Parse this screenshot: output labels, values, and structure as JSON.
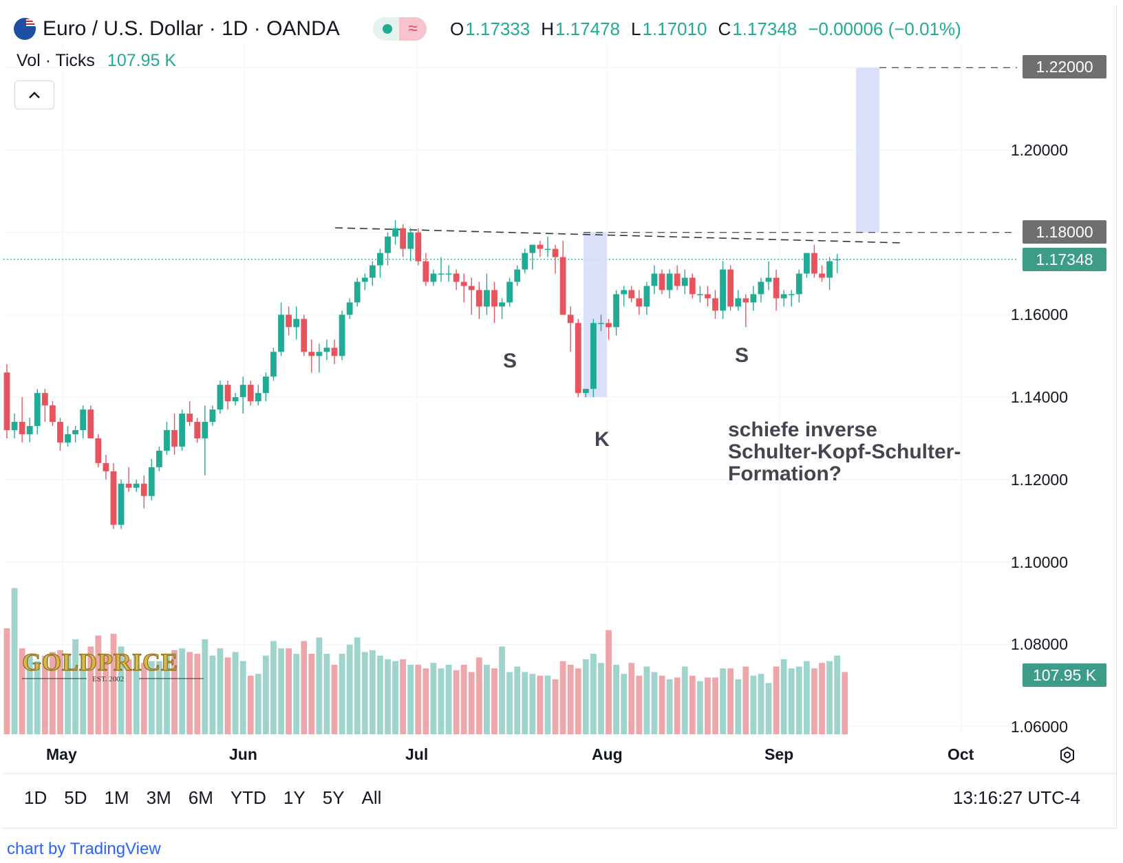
{
  "header": {
    "title": "Euro / U.S. Dollar · 1D · OANDA",
    "ohlc": [
      {
        "key": "O",
        "value": "1.17333"
      },
      {
        "key": "H",
        "value": "1.17478"
      },
      {
        "key": "L",
        "value": "1.17010"
      },
      {
        "key": "C",
        "value": "1.17348"
      }
    ],
    "change": "−0.00006 (−0.01%)"
  },
  "volume": {
    "label": "Vol · Ticks",
    "value": "107.95 K"
  },
  "price_axis": [
    "1.20000",
    "1.16000",
    "1.14000",
    "1.12000",
    "1.10000",
    "1.08000",
    "1.06000"
  ],
  "price_tags": {
    "target": "1.22000",
    "neckline": "1.18000",
    "last": "1.17348",
    "volume": "107.95 K"
  },
  "time_axis": [
    "May",
    "Jun",
    "Jul",
    "Aug",
    "Sep",
    "Oct"
  ],
  "annotations": {
    "left_shoulder": "S",
    "head": "K",
    "right_shoulder": "S",
    "note": [
      "schiefe inverse",
      "Schulter-Kopf-Schulter-",
      "Formation?"
    ]
  },
  "watermark": {
    "brand": "GOLDPRICE",
    "est": "EST. 2002"
  },
  "range_buttons": [
    "1D",
    "5D",
    "1M",
    "3M",
    "6M",
    "YTD",
    "1Y",
    "5Y",
    "All"
  ],
  "clock": "13:16:27 UTC-4",
  "credit": "chart by TradingView",
  "colors": {
    "up": "#22ab94",
    "down": "#e8545e",
    "vol_up": "#9fd4cc",
    "vol_down": "#eda7aa",
    "highlight": "#d7defa",
    "last_tag": "#3d9c88",
    "gray_tag": "#6f6f6f"
  },
  "chart_data": {
    "type": "candlestick",
    "symbol": "EURUSD",
    "interval": "1D",
    "ylim": [
      1.055,
      1.235
    ],
    "neckline": 1.18,
    "target": 1.22,
    "last": 1.17348,
    "candles": [
      [
        1.146,
        1.148,
        1.13,
        1.132
      ],
      [
        1.132,
        1.136,
        1.13,
        1.134
      ],
      [
        1.134,
        1.14,
        1.129,
        1.131
      ],
      [
        1.131,
        1.135,
        1.129,
        1.133
      ],
      [
        1.133,
        1.142,
        1.131,
        1.141
      ],
      [
        1.141,
        1.142,
        1.134,
        1.138
      ],
      [
        1.138,
        1.139,
        1.133,
        1.134
      ],
      [
        1.134,
        1.135,
        1.127,
        1.129
      ],
      [
        1.129,
        1.133,
        1.128,
        1.131
      ],
      [
        1.131,
        1.133,
        1.129,
        1.132
      ],
      [
        1.132,
        1.138,
        1.13,
        1.137
      ],
      [
        1.137,
        1.138,
        1.13,
        1.13
      ],
      [
        1.13,
        1.131,
        1.123,
        1.124
      ],
      [
        1.124,
        1.126,
        1.12,
        1.122
      ],
      [
        1.122,
        1.124,
        1.108,
        1.109
      ],
      [
        1.109,
        1.12,
        1.108,
        1.119
      ],
      [
        1.119,
        1.123,
        1.117,
        1.118
      ],
      [
        1.118,
        1.12,
        1.117,
        1.119
      ],
      [
        1.119,
        1.121,
        1.113,
        1.116
      ],
      [
        1.116,
        1.125,
        1.115,
        1.123
      ],
      [
        1.123,
        1.128,
        1.122,
        1.127
      ],
      [
        1.127,
        1.134,
        1.126,
        1.132
      ],
      [
        1.132,
        1.136,
        1.126,
        1.128
      ],
      [
        1.128,
        1.137,
        1.127,
        1.136
      ],
      [
        1.136,
        1.139,
        1.133,
        1.134
      ],
      [
        1.134,
        1.135,
        1.129,
        1.13
      ],
      [
        1.13,
        1.138,
        1.121,
        1.134
      ],
      [
        1.134,
        1.138,
        1.133,
        1.137
      ],
      [
        1.137,
        1.144,
        1.136,
        1.143
      ],
      [
        1.143,
        1.144,
        1.137,
        1.139
      ],
      [
        1.139,
        1.141,
        1.138,
        1.14
      ],
      [
        1.14,
        1.145,
        1.136,
        1.143
      ],
      [
        1.143,
        1.144,
        1.138,
        1.139
      ],
      [
        1.139,
        1.143,
        1.138,
        1.141
      ],
      [
        1.141,
        1.146,
        1.139,
        1.145
      ],
      [
        1.145,
        1.152,
        1.144,
        1.151
      ],
      [
        1.151,
        1.163,
        1.15,
        1.16
      ],
      [
        1.16,
        1.162,
        1.155,
        1.157
      ],
      [
        1.157,
        1.162,
        1.154,
        1.159
      ],
      [
        1.159,
        1.16,
        1.15,
        1.151
      ],
      [
        1.151,
        1.154,
        1.146,
        1.15
      ],
      [
        1.15,
        1.153,
        1.146,
        1.151
      ],
      [
        1.151,
        1.154,
        1.149,
        1.152
      ],
      [
        1.152,
        1.154,
        1.148,
        1.15
      ],
      [
        1.15,
        1.161,
        1.149,
        1.16
      ],
      [
        1.16,
        1.164,
        1.159,
        1.163
      ],
      [
        1.163,
        1.169,
        1.162,
        1.168
      ],
      [
        1.168,
        1.17,
        1.166,
        1.169
      ],
      [
        1.169,
        1.173,
        1.167,
        1.172
      ],
      [
        1.172,
        1.176,
        1.169,
        1.175
      ],
      [
        1.175,
        1.18,
        1.172,
        1.179
      ],
      [
        1.179,
        1.183,
        1.177,
        1.181
      ],
      [
        1.181,
        1.182,
        1.174,
        1.176
      ],
      [
        1.176,
        1.181,
        1.173,
        1.18
      ],
      [
        1.18,
        1.181,
        1.172,
        1.173
      ],
      [
        1.173,
        1.175,
        1.167,
        1.168
      ],
      [
        1.168,
        1.171,
        1.167,
        1.17
      ],
      [
        1.17,
        1.174,
        1.168,
        1.17
      ],
      [
        1.17,
        1.172,
        1.168,
        1.17
      ],
      [
        1.17,
        1.171,
        1.166,
        1.168
      ],
      [
        1.168,
        1.17,
        1.163,
        1.167
      ],
      [
        1.167,
        1.169,
        1.16,
        1.166
      ],
      [
        1.166,
        1.168,
        1.159,
        1.162
      ],
      [
        1.162,
        1.17,
        1.16,
        1.166
      ],
      [
        1.166,
        1.168,
        1.158,
        1.162
      ],
      [
        1.162,
        1.164,
        1.159,
        1.163
      ],
      [
        1.163,
        1.169,
        1.162,
        1.168
      ],
      [
        1.168,
        1.172,
        1.167,
        1.171
      ],
      [
        1.171,
        1.176,
        1.17,
        1.175
      ],
      [
        1.175,
        1.177,
        1.171,
        1.177
      ],
      [
        1.177,
        1.178,
        1.174,
        1.176
      ],
      [
        1.176,
        1.179,
        1.174,
        1.176
      ],
      [
        1.176,
        1.177,
        1.17,
        1.174
      ],
      [
        1.174,
        1.178,
        1.16,
        1.16
      ],
      [
        1.16,
        1.162,
        1.151,
        1.158
      ],
      [
        1.158,
        1.159,
        1.14,
        1.141
      ],
      [
        1.141,
        1.142,
        1.14,
        1.142
      ],
      [
        1.142,
        1.159,
        1.14,
        1.158
      ],
      [
        1.158,
        1.16,
        1.156,
        1.158
      ],
      [
        1.158,
        1.159,
        1.154,
        1.157
      ],
      [
        1.157,
        1.166,
        1.155,
        1.165
      ],
      [
        1.165,
        1.167,
        1.162,
        1.166
      ],
      [
        1.166,
        1.167,
        1.163,
        1.164
      ],
      [
        1.164,
        1.166,
        1.16,
        1.162
      ],
      [
        1.162,
        1.168,
        1.16,
        1.167
      ],
      [
        1.167,
        1.172,
        1.165,
        1.17
      ],
      [
        1.17,
        1.171,
        1.165,
        1.166
      ],
      [
        1.166,
        1.171,
        1.164,
        1.17
      ],
      [
        1.17,
        1.172,
        1.166,
        1.167
      ],
      [
        1.167,
        1.171,
        1.165,
        1.169
      ],
      [
        1.169,
        1.17,
        1.164,
        1.165
      ],
      [
        1.165,
        1.167,
        1.163,
        1.165
      ],
      [
        1.165,
        1.167,
        1.162,
        1.164
      ],
      [
        1.164,
        1.166,
        1.159,
        1.161
      ],
      [
        1.161,
        1.173,
        1.159,
        1.171
      ],
      [
        1.171,
        1.172,
        1.161,
        1.162
      ],
      [
        1.162,
        1.166,
        1.161,
        1.164
      ],
      [
        1.164,
        1.165,
        1.157,
        1.163
      ],
      [
        1.163,
        1.167,
        1.161,
        1.165
      ],
      [
        1.165,
        1.169,
        1.163,
        1.168
      ],
      [
        1.168,
        1.173,
        1.166,
        1.169
      ],
      [
        1.169,
        1.171,
        1.161,
        1.164
      ],
      [
        1.164,
        1.166,
        1.162,
        1.165
      ],
      [
        1.165,
        1.166,
        1.162,
        1.165
      ],
      [
        1.165,
        1.171,
        1.163,
        1.17
      ],
      [
        1.17,
        1.175,
        1.169,
        1.175
      ],
      [
        1.175,
        1.177,
        1.169,
        1.17
      ],
      [
        1.17,
        1.172,
        1.168,
        1.169
      ],
      [
        1.169,
        1.174,
        1.166,
        1.173
      ],
      [
        1.1733,
        1.1748,
        1.1701,
        1.1735
      ]
    ],
    "volume": [
      94,
      116,
      83,
      79,
      76,
      79,
      81,
      82,
      80,
      88,
      79,
      84,
      90,
      80,
      91,
      84,
      77,
      80,
      75,
      76,
      76,
      80,
      82,
      83,
      81,
      80,
      88,
      79,
      83,
      78,
      81,
      76,
      68,
      69,
      79,
      87,
      83,
      83,
      80,
      87,
      80,
      89,
      80,
      74,
      80,
      85,
      89,
      81,
      82,
      79,
      77,
      76,
      77,
      74,
      74,
      72,
      75,
      72,
      74,
      71,
      74,
      70,
      78,
      74,
      72,
      84,
      70,
      73,
      70,
      69,
      68,
      68,
      66,
      76,
      74,
      72,
      77,
      80,
      75,
      93,
      74,
      69,
      75,
      68,
      73,
      70,
      68,
      66,
      67,
      73,
      68,
      65,
      67,
      67,
      72,
      72,
      66,
      73,
      68,
      69,
      64,
      73,
      77,
      72,
      73,
      76,
      72,
      75,
      76,
      79,
      70
    ]
  }
}
